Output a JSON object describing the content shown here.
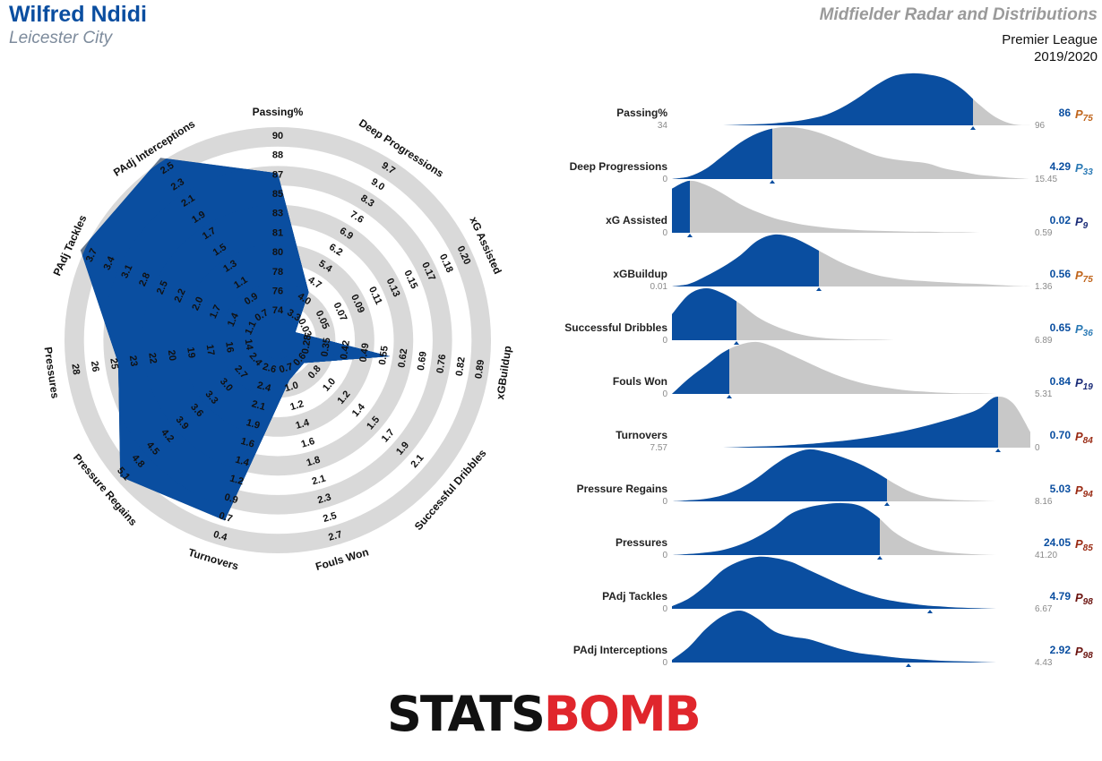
{
  "header": {
    "player": "Wilfred Ndidi",
    "team": "Leicester City",
    "title": "Midfielder Radar and Distributions",
    "league": "Premier League",
    "season": "2019/2020"
  },
  "logo": {
    "left_text": "STATS",
    "right_text": "BOMB"
  },
  "colors": {
    "primary": "#0a4ea0",
    "radar_fill": "#6b7b8f",
    "ring_gray": "#d9d9d9",
    "dist_gray": "#c8c8c8",
    "p_orange": "#c0651c",
    "p_blue": "#2b7ab5",
    "p_navy": "#1b2c78",
    "p_darkred": "#9a2b14",
    "p_maroon": "#6b1410"
  },
  "chart_data": [
    {
      "type": "radar",
      "metrics": [
        {
          "label": "Passing%",
          "value": 86,
          "ticks": [
            "74",
            "76",
            "78",
            "80",
            "81",
            "83",
            "85",
            "87",
            "88",
            "90"
          ]
        },
        {
          "label": "Deep Progressions",
          "value": 4.29,
          "ticks": [
            "3.3",
            "4.0",
            "4.7",
            "5.4",
            "6.2",
            "6.9",
            "7.6",
            "8.3",
            "9.0",
            "9.7"
          ]
        },
        {
          "label": "xG Assisted",
          "value": 0.02,
          "ticks": [
            "0.03",
            "0.05",
            "0.07",
            "0.09",
            "0.11",
            "0.13",
            "0.15",
            "0.17",
            "0.18",
            "0.20"
          ]
        },
        {
          "label": "xGBuildup",
          "value": 0.56,
          "ticks": [
            "0.28",
            "0.35",
            "0.42",
            "0.49",
            "0.55",
            "0.62",
            "0.69",
            "0.76",
            "0.82",
            "0.89"
          ]
        },
        {
          "label": "Successful Dribbles",
          "value": 0.65,
          "ticks": [
            "0.6",
            "0.8",
            "1.0",
            "1.2",
            "1.4",
            "1.5",
            "1.7",
            "1.9",
            "2.1"
          ]
        },
        {
          "label": "Fouls Won",
          "value": 0.84,
          "ticks": [
            "0.7",
            "1.0",
            "1.2",
            "1.4",
            "1.6",
            "1.8",
            "2.1",
            "2.3",
            "2.5",
            "2.7"
          ]
        },
        {
          "label": "Turnovers",
          "value": 0.7,
          "ticks": [
            "2.6",
            "2.4",
            "2.1",
            "1.9",
            "1.6",
            "1.4",
            "1.2",
            "0.9",
            "0.7",
            "0.4"
          ]
        },
        {
          "label": "Pressure Regains",
          "value": 5.03,
          "ticks": [
            "2.4",
            "2.7",
            "3.0",
            "3.3",
            "3.6",
            "3.9",
            "4.2",
            "4.5",
            "4.8",
            "5.1"
          ]
        },
        {
          "label": "Pressures",
          "value": 24.05,
          "ticks": [
            "14",
            "16",
            "17",
            "19",
            "20",
            "22",
            "23",
            "25",
            "26",
            "28"
          ]
        },
        {
          "label": "PAdj Tackles",
          "value": 4.79,
          "ticks": [
            "1.1",
            "1.4",
            "1.7",
            "2.0",
            "2.2",
            "2.5",
            "2.8",
            "3.1",
            "3.4",
            "3.7"
          ]
        },
        {
          "label": "PAdj Interceptions",
          "value": 2.92,
          "ticks": [
            "0.7",
            "0.9",
            "1.1",
            "1.3",
            "1.5",
            "1.7",
            "1.9",
            "2.1",
            "2.3",
            "2.5"
          ]
        }
      ]
    },
    {
      "type": "area",
      "rows": [
        {
          "label": "Passing%",
          "value": "86",
          "percentile": "75",
          "pcolor": "#c0651c",
          "min": "34",
          "max": "96",
          "split": 0.84,
          "profile": [
            0,
            0,
            0,
            0,
            0.01,
            0.02,
            0.04,
            0.07,
            0.12,
            0.2,
            0.35,
            0.55,
            0.78,
            0.95,
            1,
            0.98,
            0.9,
            0.7,
            0.4,
            0.15,
            0.02,
            0
          ]
        },
        {
          "label": "Deep Progressions",
          "value": "4.29",
          "percentile": "33",
          "pcolor": "#2b7ab5",
          "min": "0",
          "max": "15.45",
          "split": 0.28,
          "profile": [
            0,
            0.05,
            0.2,
            0.45,
            0.7,
            0.88,
            0.98,
            1,
            0.95,
            0.85,
            0.72,
            0.58,
            0.45,
            0.38,
            0.34,
            0.3,
            0.2,
            0.14,
            0.08,
            0.05,
            0.02,
            0
          ]
        },
        {
          "label": "xG Assisted",
          "value": "0.02",
          "percentile": "9",
          "pcolor": "#1b2c78",
          "min": "0",
          "max": "0.59",
          "split": 0.05,
          "profile": [
            0.85,
            1,
            0.92,
            0.75,
            0.55,
            0.4,
            0.28,
            0.2,
            0.14,
            0.1,
            0.07,
            0.05,
            0.04,
            0.03,
            0.02,
            0.02,
            0.01,
            0.01,
            0,
            0,
            0,
            0
          ]
        },
        {
          "label": "xGBuildup",
          "value": "0.56",
          "percentile": "75",
          "pcolor": "#c0651c",
          "min": "0.01",
          "max": "1.36",
          "split": 0.41,
          "profile": [
            0,
            0.05,
            0.2,
            0.38,
            0.6,
            0.88,
            1,
            0.95,
            0.8,
            0.62,
            0.45,
            0.32,
            0.22,
            0.16,
            0.12,
            0.1,
            0.08,
            0.06,
            0.05,
            0.03,
            0.01,
            0
          ]
        },
        {
          "label": "Successful Dribbles",
          "value": "0.65",
          "percentile": "36",
          "pcolor": "#2b7ab5",
          "min": "0",
          "max": "6.89",
          "split": 0.18,
          "profile": [
            0.5,
            0.88,
            1,
            0.9,
            0.7,
            0.45,
            0.28,
            0.16,
            0.08,
            0.04,
            0.02,
            0.01,
            0.01,
            0,
            0,
            0,
            0,
            0,
            0,
            0,
            0,
            0
          ]
        },
        {
          "label": "Fouls Won",
          "value": "0.84",
          "percentile": "19",
          "pcolor": "#1b2c78",
          "min": "0",
          "max": "5.31",
          "split": 0.16,
          "profile": [
            0,
            0.3,
            0.55,
            0.8,
            0.95,
            1,
            0.9,
            0.75,
            0.6,
            0.45,
            0.32,
            0.22,
            0.15,
            0.1,
            0.06,
            0.04,
            0.02,
            0.01,
            0.01,
            0,
            0,
            0
          ]
        },
        {
          "label": "Turnovers",
          "value": "0.70",
          "percentile": "84",
          "pcolor": "#9a2b14",
          "min": "7.57",
          "max": "0",
          "split": 0.91,
          "profile": [
            0,
            0,
            0,
            0,
            0.01,
            0.02,
            0.03,
            0.05,
            0.07,
            0.1,
            0.13,
            0.17,
            0.22,
            0.28,
            0.35,
            0.43,
            0.52,
            0.62,
            0.75,
            0.98,
            0.85,
            0.3
          ]
        },
        {
          "label": "Pressure Regains",
          "value": "5.03",
          "percentile": "94",
          "pcolor": "#9a2b14",
          "min": "0",
          "max": "8.16",
          "split": 0.6,
          "profile": [
            0,
            0.02,
            0.05,
            0.12,
            0.25,
            0.45,
            0.7,
            0.9,
            1,
            0.95,
            0.85,
            0.72,
            0.55,
            0.35,
            0.18,
            0.08,
            0.04,
            0.02,
            0.01,
            0,
            0,
            0
          ]
        },
        {
          "label": "Pressures",
          "value": "24.05",
          "percentile": "85",
          "pcolor": "#9a2b14",
          "min": "0",
          "max": "41.20",
          "split": 0.58,
          "profile": [
            0,
            0.02,
            0.05,
            0.1,
            0.2,
            0.35,
            0.55,
            0.8,
            0.92,
            0.98,
            1,
            0.95,
            0.75,
            0.45,
            0.25,
            0.12,
            0.06,
            0.03,
            0.01,
            0,
            0,
            0
          ]
        },
        {
          "label": "PAdj Tackles",
          "value": "4.79",
          "percentile": "98",
          "pcolor": "#6b1410",
          "min": "0",
          "max": "6.67",
          "split": 1.0,
          "marker": 0.72,
          "profile": [
            0.05,
            0.2,
            0.45,
            0.75,
            0.92,
            1,
            0.98,
            0.9,
            0.75,
            0.6,
            0.45,
            0.32,
            0.22,
            0.15,
            0.1,
            0.06,
            0.04,
            0.02,
            0.01,
            0,
            0,
            0
          ]
        },
        {
          "label": "PAdj Interceptions",
          "value": "2.92",
          "percentile": "98",
          "pcolor": "#6b1410",
          "min": "0",
          "max": "4.43",
          "split": 1.0,
          "marker": 0.66,
          "profile": [
            0.05,
            0.3,
            0.65,
            0.9,
            1,
            0.85,
            0.6,
            0.5,
            0.45,
            0.35,
            0.25,
            0.18,
            0.14,
            0.1,
            0.07,
            0.05,
            0.03,
            0.02,
            0.01,
            0,
            0,
            0
          ]
        }
      ]
    }
  ]
}
